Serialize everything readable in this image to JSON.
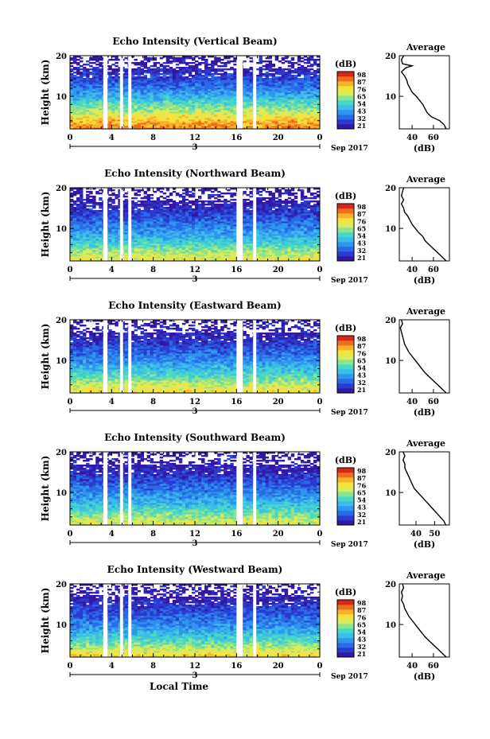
{
  "colors": {
    "scale": [
      "#3418a3",
      "#2a3bd0",
      "#2a6ae6",
      "#2f96ef",
      "#3bbde8",
      "#47d8c6",
      "#8ee38f",
      "#d9eb5a",
      "#f6e23c",
      "#f8b12a",
      "#ef6d1d",
      "#d9261b"
    ],
    "profile_line": "#000000"
  },
  "colorbar": {
    "unit": "(dB)",
    "labels": [
      "98",
      "87",
      "76",
      "65",
      "54",
      "43",
      "32",
      "21"
    ]
  },
  "axis": {
    "height_label": "Height (km)",
    "x_ticks": [
      "0",
      "4",
      "8",
      "12",
      "16",
      "20",
      "0"
    ],
    "day_label": "3",
    "month_label": "Sep 2017",
    "local_time": "Local Time"
  },
  "profile": {
    "title": "Average",
    "xlabel": "(dB)"
  },
  "chart_data": [
    {
      "type": "heatmap",
      "title": "Echo Intensity (Vertical Beam)",
      "xlabel": "",
      "ylabel": "Height (km)",
      "x_range_hours": [
        0,
        24
      ],
      "y_range_km": [
        2,
        20
      ],
      "y_ticks": [
        10,
        20
      ],
      "color_range_db": [
        21,
        98
      ],
      "data_gaps_hours": [
        [
          3.2,
          3.6
        ],
        [
          4.8,
          5.1
        ],
        [
          5.6,
          5.9
        ],
        [
          16.0,
          16.6
        ],
        [
          17.6,
          17.9
        ]
      ],
      "layers_db": [
        {
          "height_km": 2.5,
          "value": 85
        },
        {
          "height_km": 4,
          "value": 80
        },
        {
          "height_km": 6,
          "value": 68
        },
        {
          "height_km": 8,
          "value": 58
        },
        {
          "height_km": 10,
          "value": 48
        },
        {
          "height_km": 12,
          "value": 40
        },
        {
          "height_km": 14,
          "value": 33
        },
        {
          "height_km": 16,
          "value": 28
        },
        {
          "height_km": 18,
          "value": 24
        },
        {
          "height_km": 20,
          "value": 22
        }
      ],
      "average_profile": {
        "x_ticks": [
          40,
          60
        ],
        "x_range": [
          28,
          75
        ],
        "points": [
          [
            72,
            2
          ],
          [
            70,
            3
          ],
          [
            66,
            4
          ],
          [
            58,
            5
          ],
          [
            54,
            6
          ],
          [
            52,
            7
          ],
          [
            50,
            8
          ],
          [
            47,
            9
          ],
          [
            44,
            10
          ],
          [
            40,
            11
          ],
          [
            38,
            12
          ],
          [
            36,
            13
          ],
          [
            35,
            14
          ],
          [
            33,
            15
          ],
          [
            30,
            16
          ],
          [
            34,
            17
          ],
          [
            40,
            17.5
          ],
          [
            31,
            18
          ],
          [
            30,
            19
          ],
          [
            32,
            20
          ]
        ]
      }
    },
    {
      "type": "heatmap",
      "title": "Echo Intensity (Northward Beam)",
      "xlabel": "",
      "ylabel": "Height (km)",
      "x_range_hours": [
        0,
        24
      ],
      "y_range_km": [
        2,
        20
      ],
      "y_ticks": [
        10,
        20
      ],
      "color_range_db": [
        21,
        98
      ],
      "data_gaps_hours": [
        [
          3.2,
          3.6
        ],
        [
          4.8,
          5.1
        ],
        [
          5.6,
          5.9
        ],
        [
          16.0,
          16.6
        ],
        [
          17.6,
          17.9
        ]
      ],
      "layers_db": [
        {
          "height_km": 2.5,
          "value": 72
        },
        {
          "height_km": 4,
          "value": 66
        },
        {
          "height_km": 6,
          "value": 56
        },
        {
          "height_km": 8,
          "value": 48
        },
        {
          "height_km": 10,
          "value": 42
        },
        {
          "height_km": 12,
          "value": 36
        },
        {
          "height_km": 14,
          "value": 30
        },
        {
          "height_km": 16,
          "value": 26
        },
        {
          "height_km": 18,
          "value": 23
        },
        {
          "height_km": 20,
          "value": 21
        }
      ],
      "average_profile": {
        "x_ticks": [
          40,
          60
        ],
        "x_range": [
          28,
          75
        ],
        "points": [
          [
            72,
            2
          ],
          [
            68,
            3
          ],
          [
            64,
            4
          ],
          [
            60,
            5
          ],
          [
            56,
            6
          ],
          [
            52,
            7
          ],
          [
            50,
            8
          ],
          [
            46,
            9
          ],
          [
            43,
            10
          ],
          [
            40,
            11
          ],
          [
            38,
            12
          ],
          [
            36,
            13
          ],
          [
            33,
            14
          ],
          [
            32,
            15
          ],
          [
            30,
            16
          ],
          [
            32,
            17
          ],
          [
            30,
            18
          ],
          [
            31,
            19
          ],
          [
            32,
            20
          ]
        ]
      }
    },
    {
      "type": "heatmap",
      "title": "Echo Intensity (Eastward Beam)",
      "xlabel": "",
      "ylabel": "Height (km)",
      "x_range_hours": [
        0,
        24
      ],
      "y_range_km": [
        2,
        20
      ],
      "y_ticks": [
        10,
        20
      ],
      "color_range_db": [
        21,
        98
      ],
      "data_gaps_hours": [
        [
          3.2,
          3.6
        ],
        [
          4.8,
          5.1
        ],
        [
          5.6,
          5.9
        ],
        [
          16.0,
          16.6
        ],
        [
          17.6,
          17.9
        ]
      ],
      "layers_db": [
        {
          "height_km": 2.5,
          "value": 74
        },
        {
          "height_km": 4,
          "value": 68
        },
        {
          "height_km": 6,
          "value": 58
        },
        {
          "height_km": 8,
          "value": 50
        },
        {
          "height_km": 10,
          "value": 43
        },
        {
          "height_km": 12,
          "value": 37
        },
        {
          "height_km": 14,
          "value": 31
        },
        {
          "height_km": 16,
          "value": 27
        },
        {
          "height_km": 18,
          "value": 24
        },
        {
          "height_km": 20,
          "value": 21
        }
      ],
      "average_profile": {
        "x_ticks": [
          40,
          60
        ],
        "x_range": [
          28,
          75
        ],
        "points": [
          [
            72,
            2
          ],
          [
            68,
            3
          ],
          [
            64,
            4
          ],
          [
            60,
            5
          ],
          [
            56,
            6
          ],
          [
            52,
            7
          ],
          [
            49,
            8
          ],
          [
            46,
            9
          ],
          [
            43,
            10
          ],
          [
            40,
            11
          ],
          [
            37,
            12
          ],
          [
            35,
            13
          ],
          [
            33,
            14
          ],
          [
            32,
            15
          ],
          [
            31,
            16
          ],
          [
            30,
            17
          ],
          [
            29,
            18
          ],
          [
            31,
            19
          ],
          [
            30,
            20
          ]
        ]
      }
    },
    {
      "type": "heatmap",
      "title": "Echo Intensity (Southward Beam)",
      "xlabel": "",
      "ylabel": "Height (km)",
      "x_range_hours": [
        0,
        24
      ],
      "y_range_km": [
        2,
        20
      ],
      "y_ticks": [
        10,
        20
      ],
      "color_range_db": [
        21,
        98
      ],
      "data_gaps_hours": [
        [
          3.2,
          3.6
        ],
        [
          4.8,
          5.1
        ],
        [
          5.6,
          5.9
        ],
        [
          16.0,
          16.6
        ],
        [
          17.6,
          17.9
        ]
      ],
      "layers_db": [
        {
          "height_km": 2.5,
          "value": 70
        },
        {
          "height_km": 4,
          "value": 64
        },
        {
          "height_km": 6,
          "value": 55
        },
        {
          "height_km": 8,
          "value": 47
        },
        {
          "height_km": 10,
          "value": 41
        },
        {
          "height_km": 12,
          "value": 35
        },
        {
          "height_km": 14,
          "value": 30
        },
        {
          "height_km": 16,
          "value": 26
        },
        {
          "height_km": 18,
          "value": 23
        },
        {
          "height_km": 20,
          "value": 21
        }
      ],
      "average_profile": {
        "x_ticks": [
          40,
          50
        ],
        "x_range": [
          31,
          58
        ],
        "points": [
          [
            56,
            2
          ],
          [
            55,
            3
          ],
          [
            53,
            4
          ],
          [
            51,
            5
          ],
          [
            49,
            6
          ],
          [
            47,
            7
          ],
          [
            45,
            8
          ],
          [
            43,
            9
          ],
          [
            41,
            10
          ],
          [
            39,
            11
          ],
          [
            38,
            12
          ],
          [
            37,
            13
          ],
          [
            36,
            14
          ],
          [
            35,
            15
          ],
          [
            34,
            16
          ],
          [
            34,
            17
          ],
          [
            33,
            18
          ],
          [
            34,
            19
          ],
          [
            33,
            20
          ]
        ]
      }
    },
    {
      "type": "heatmap",
      "title": "Echo Intensity (Westward Beam)",
      "xlabel": "Local Time",
      "ylabel": "Height (km)",
      "x_range_hours": [
        0,
        24
      ],
      "y_range_km": [
        2,
        20
      ],
      "y_ticks": [
        10,
        20
      ],
      "color_range_db": [
        21,
        98
      ],
      "data_gaps_hours": [
        [
          3.2,
          3.6
        ],
        [
          4.8,
          5.1
        ],
        [
          5.6,
          5.9
        ],
        [
          16.0,
          16.6
        ],
        [
          17.6,
          17.9
        ]
      ],
      "layers_db": [
        {
          "height_km": 2.5,
          "value": 76
        },
        {
          "height_km": 4,
          "value": 68
        },
        {
          "height_km": 6,
          "value": 57
        },
        {
          "height_km": 8,
          "value": 49
        },
        {
          "height_km": 10,
          "value": 42
        },
        {
          "height_km": 12,
          "value": 36
        },
        {
          "height_km": 14,
          "value": 31
        },
        {
          "height_km": 16,
          "value": 27
        },
        {
          "height_km": 18,
          "value": 24
        },
        {
          "height_km": 20,
          "value": 21
        }
      ],
      "average_profile": {
        "x_ticks": [
          40,
          60
        ],
        "x_range": [
          28,
          75
        ],
        "points": [
          [
            72,
            2
          ],
          [
            68,
            3
          ],
          [
            64,
            4
          ],
          [
            60,
            5
          ],
          [
            56,
            6
          ],
          [
            52,
            7
          ],
          [
            49,
            8
          ],
          [
            46,
            9
          ],
          [
            43,
            10
          ],
          [
            40,
            11
          ],
          [
            37,
            12
          ],
          [
            35,
            13
          ],
          [
            33,
            14
          ],
          [
            32,
            15
          ],
          [
            30,
            16
          ],
          [
            31,
            17
          ],
          [
            30,
            18
          ],
          [
            32,
            19
          ],
          [
            31,
            20
          ]
        ]
      }
    }
  ]
}
